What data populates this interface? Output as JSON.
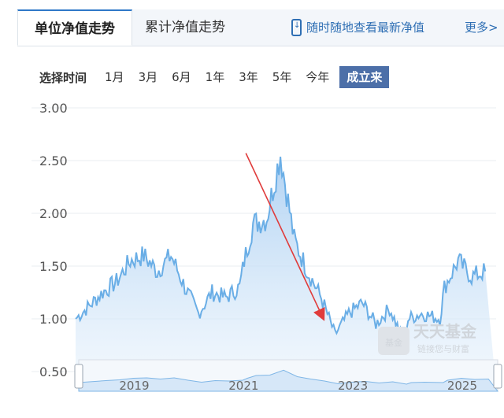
{
  "tabs": {
    "nav_unit": "单位净值走势",
    "nav_cumulative": "累计净值走势",
    "mobile": "随时随地查看最新净值",
    "more": "更多>"
  },
  "range": {
    "label": "选择时间",
    "options": [
      "1月",
      "3月",
      "6月",
      "1年",
      "3年",
      "5年",
      "今年",
      "成立来"
    ],
    "selected": "成立来"
  },
  "watermark": {
    "badge": "基金",
    "line1": "天天基金",
    "line2": "链接您与财富"
  },
  "colors": {
    "line": "#6aaee6",
    "area": "#cfe3f7",
    "accent": "#4c6fa8",
    "arrow": "#e03c3c"
  },
  "chart_data": {
    "type": "area",
    "ylim": [
      0.5,
      3.0
    ],
    "yticks": [
      "0.50",
      "1.00",
      "1.50",
      "2.00",
      "2.50",
      "3.00"
    ],
    "x_ticks": [
      "2019",
      "2021",
      "2023",
      "2025"
    ],
    "x": [
      "2018-01",
      "2018-04",
      "2018-07",
      "2018-10",
      "2019-01",
      "2019-04",
      "2019-07",
      "2019-10",
      "2020-01",
      "2020-04",
      "2020-07",
      "2020-10",
      "2021-01",
      "2021-02",
      "2021-04",
      "2021-07",
      "2021-10",
      "2022-01",
      "2022-04",
      "2022-07",
      "2022-10",
      "2023-01",
      "2023-04",
      "2023-07",
      "2023-10",
      "2024-01",
      "2024-02",
      "2024-05",
      "2024-09",
      "2024-10",
      "2025-01",
      "2025-04",
      "2025-07"
    ],
    "series": [
      {
        "values": [
          1.0,
          1.12,
          1.25,
          1.35,
          1.55,
          1.6,
          1.45,
          1.6,
          1.3,
          1.05,
          1.25,
          1.2,
          1.3,
          1.55,
          1.9,
          1.95,
          2.57,
          1.75,
          1.45,
          1.2,
          0.85,
          1.05,
          1.15,
          0.95,
          1.1,
          0.8,
          1.0,
          1.05,
          1.0,
          1.3,
          1.55,
          1.4,
          1.45
        ]
      }
    ],
    "annotations": [
      {
        "type": "arrow",
        "from": [
          "2021-01",
          2.57
        ],
        "to": [
          "2022-04",
          1.0
        ]
      }
    ]
  }
}
